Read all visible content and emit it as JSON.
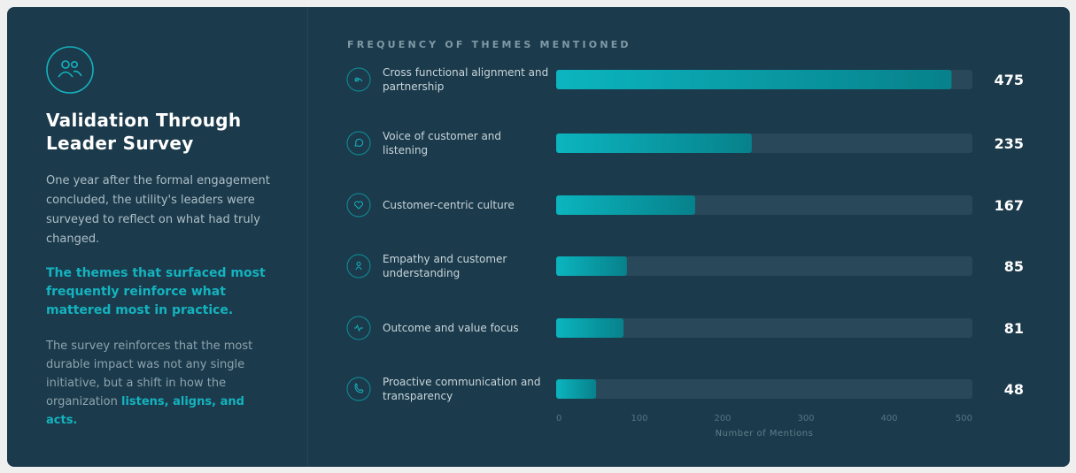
{
  "panel": {
    "title": "Validation Through Leader Survey",
    "intro": "One year after the formal engagement concluded, the utility's leaders were surveyed to reflect on what had truly changed.",
    "highlight": "The themes that surfaced most frequently reinforce what mattered most in practice.",
    "closing": "The survey reinforces that the most durable impact was not any single initiative, but a shift in how the organization",
    "closing_emphasis": "listens, aligns, and acts."
  },
  "chart_data": {
    "type": "bar",
    "orientation": "horizontal",
    "title": "FREQUENCY OF THEMES MENTIONED",
    "categories": [
      "Cross functional alignment and partnership",
      "Voice of customer and listening",
      "Customer-centric culture",
      "Empathy and customer understanding",
      "Outcome and value focus",
      "Proactive communication and transparency"
    ],
    "values": [
      475,
      235,
      167,
      85,
      81,
      48
    ],
    "color": "#0bb5bf",
    "xlim": [
      0,
      500
    ],
    "xticks": [
      0,
      100,
      200,
      300,
      400,
      500
    ],
    "xlabel": "Number of Mentions"
  }
}
